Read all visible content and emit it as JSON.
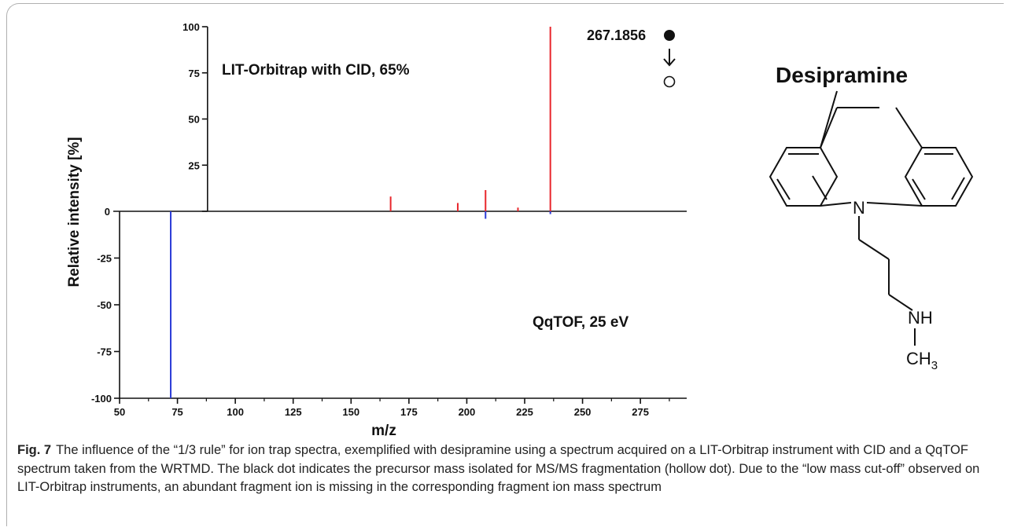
{
  "chart_data": {
    "type": "bar",
    "subtype": "mirror-mass-spectrum",
    "xlabel": "m/z",
    "ylabel": "Relative intensity [%]",
    "xlim": [
      50,
      295
    ],
    "ylim": [
      -100,
      100
    ],
    "xticks": [
      50,
      75,
      100,
      125,
      150,
      175,
      200,
      225,
      250,
      275
    ],
    "yticks": [
      100,
      75,
      50,
      25,
      0,
      -25,
      -50,
      -75,
      -100
    ],
    "series": [
      {
        "name": "LIT-Orbitrap with CID, 65%",
        "color": "#e8262b",
        "x": [
          167.1,
          196.1,
          208.1,
          222.1,
          236.1
        ],
        "y": [
          8,
          4.5,
          11.5,
          2,
          100
        ]
      },
      {
        "name": "QqTOF, 25 eV",
        "color": "#2b3bd6",
        "x": [
          72.1,
          208.1,
          236.1
        ],
        "y": [
          -100,
          -4,
          -1.5
        ]
      }
    ],
    "annotations": {
      "precursor_mass": "267.1856",
      "top_label": "LIT-Orbitrap with CID, 65%",
      "bottom_label": "QqTOF, 25 eV"
    }
  },
  "molecule": {
    "name": "Desipramine",
    "atoms": {
      "n_ring": "N",
      "nh": "NH",
      "ch": "CH",
      "sub3": "3"
    }
  },
  "caption": {
    "label": "Fig. 7",
    "text": "The influence of the “1/3 rule” for ion trap spectra, exemplified with desipramine using a spectrum acquired on a LIT-Orbitrap instrument with CID and a QqTOF spectrum taken from the WRTMD. The black dot indicates the precursor mass isolated for MS/MS fragmentation (hollow dot). Due to the “low mass cut-off” observed on LIT-Orbitrap instruments, an abundant fragment ion is missing in the corresponding fragment ion mass spectrum"
  }
}
